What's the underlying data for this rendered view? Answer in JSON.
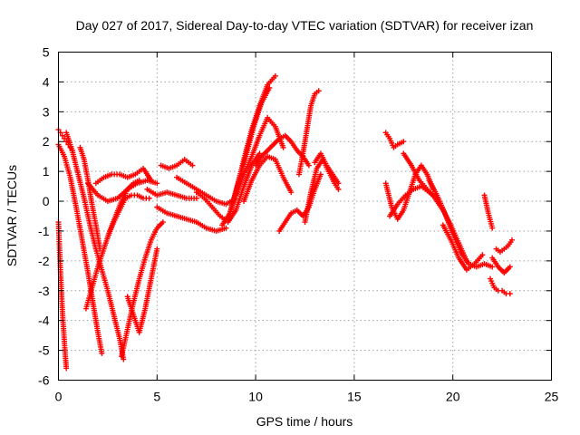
{
  "chart_data": {
    "type": "scatter",
    "title": "Day 027 of 2017, Sidereal Day-to-day VTEC variation (SDTVAR) for receiver izan",
    "xlabel": "GPS time / hours",
    "ylabel": "SDTVAR / TECUs",
    "xlim": [
      0,
      25
    ],
    "ylim": [
      -6,
      5
    ],
    "x_ticks": [
      "0",
      "5",
      "10",
      "15",
      "20",
      "25"
    ],
    "y_ticks": [
      "-6",
      "-5",
      "-4",
      "-3",
      "-2",
      "-1",
      "0",
      "1",
      "2",
      "3",
      "4",
      "5"
    ],
    "grid": true,
    "legend": "none",
    "marker": "plus",
    "color": "#ff0000",
    "series": [
      {
        "x": [
          0.0,
          0.05,
          0.1,
          0.15,
          0.2,
          0.25,
          0.3,
          0.35,
          0.4
        ],
        "y": [
          -0.7,
          -1.5,
          -2.3,
          -3.0,
          -3.7,
          -4.2,
          -4.7,
          -5.2,
          -5.6
        ]
      },
      {
        "x": [
          0.0,
          0.1,
          0.2,
          0.3,
          0.4,
          0.5,
          0.6,
          0.7
        ],
        "y": [
          2.4,
          2.3,
          2.2,
          2.1,
          2.0,
          1.9,
          1.8,
          1.7
        ]
      },
      {
        "x": [
          0.0,
          0.3,
          0.6,
          0.9,
          1.2,
          1.5,
          1.8,
          2.0,
          2.2
        ],
        "y": [
          1.9,
          1.5,
          0.8,
          -0.2,
          -1.3,
          -2.4,
          -3.6,
          -4.4,
          -5.1
        ]
      },
      {
        "x": [
          0.4,
          0.7,
          1.0,
          1.3,
          1.6,
          1.9,
          2.2,
          2.5,
          2.8,
          3.1,
          3.3
        ],
        "y": [
          2.3,
          1.7,
          0.9,
          0.1,
          -0.8,
          -1.6,
          -2.3,
          -3.0,
          -3.8,
          -4.6,
          -5.3
        ]
      },
      {
        "x": [
          1.1,
          1.3,
          1.5,
          1.7,
          1.9,
          2.1
        ],
        "y": [
          1.8,
          1.4,
          0.7,
          -0.1,
          -0.8,
          -1.6
        ]
      },
      {
        "x": [
          1.4,
          1.7,
          2.0,
          2.3,
          2.6,
          2.9,
          3.2,
          3.5,
          3.8,
          4.1
        ],
        "y": [
          -3.6,
          -2.9,
          -2.2,
          -1.6,
          -1.0,
          -0.5,
          0.0,
          0.4,
          0.6,
          0.7
        ]
      },
      {
        "x": [
          1.5,
          2.0,
          2.5,
          3.0,
          3.5,
          4.0,
          4.5,
          5.0
        ],
        "y": [
          0.6,
          0.2,
          0.0,
          0.1,
          0.4,
          0.6,
          0.7,
          0.6
        ]
      },
      {
        "x": [
          1.9,
          2.3,
          2.7,
          3.1,
          3.5,
          3.9,
          4.3,
          4.7
        ],
        "y": [
          0.6,
          0.8,
          0.9,
          0.9,
          0.8,
          0.9,
          1.1,
          0.7
        ]
      },
      {
        "x": [
          2.5,
          2.8,
          3.1,
          3.4,
          3.7,
          4.0,
          4.3,
          4.6
        ],
        "y": [
          -1.2,
          -0.7,
          -0.3,
          0.1,
          0.2,
          0.2,
          0.1,
          0.1
        ]
      },
      {
        "x": [
          3.2,
          3.5,
          3.8,
          4.1,
          4.4,
          4.7,
          5.0,
          5.3
        ],
        "y": [
          -5.2,
          -4.3,
          -3.4,
          -2.6,
          -1.9,
          -1.3,
          -0.9,
          -0.7
        ]
      },
      {
        "x": [
          3.5,
          3.8,
          4.1,
          4.4,
          4.7,
          5.0
        ],
        "y": [
          -3.2,
          -3.8,
          -4.4,
          -3.6,
          -2.6,
          -1.6
        ]
      },
      {
        "x": [
          4.5,
          5.0,
          5.5,
          6.0,
          6.5,
          7.0
        ],
        "y": [
          0.4,
          0.2,
          0.3,
          0.2,
          0.1,
          0.1
        ]
      },
      {
        "x": [
          5.0,
          5.5,
          6.0,
          6.5,
          7.0,
          7.5,
          8.0,
          8.5
        ],
        "y": [
          -0.2,
          -0.4,
          -0.5,
          -0.6,
          -0.7,
          -0.9,
          -1.0,
          -0.9
        ]
      },
      {
        "x": [
          5.2,
          5.6,
          6.0,
          6.4,
          6.8
        ],
        "y": [
          1.2,
          1.1,
          1.2,
          1.4,
          1.2
        ]
      },
      {
        "x": [
          6.0,
          6.5,
          7.0,
          7.5,
          8.0,
          8.5,
          9.0
        ],
        "y": [
          0.8,
          0.6,
          0.4,
          0.2,
          0.0,
          -0.1,
          0.1
        ]
      },
      {
        "x": [
          7.0,
          7.4,
          7.8,
          8.2,
          8.6,
          9.0,
          9.4,
          9.8,
          10.2
        ],
        "y": [
          0.3,
          0.1,
          -0.2,
          -0.5,
          -0.7,
          -0.3,
          0.5,
          1.2,
          1.6
        ]
      },
      {
        "x": [
          8.3,
          8.7,
          9.1,
          9.5,
          9.9,
          10.3,
          10.7
        ],
        "y": [
          -0.8,
          -0.4,
          0.6,
          1.5,
          2.5,
          3.3,
          3.8
        ]
      },
      {
        "x": [
          8.6,
          9.0,
          9.4,
          9.8,
          10.2,
          10.6,
          11.0
        ],
        "y": [
          -0.6,
          0.3,
          1.4,
          2.4,
          3.2,
          3.9,
          4.2
        ]
      },
      {
        "x": [
          9.0,
          9.4,
          9.8,
          10.2,
          10.6,
          11.0,
          11.4
        ],
        "y": [
          0.2,
          0.9,
          1.5,
          2.2,
          2.8,
          2.5,
          1.8
        ]
      },
      {
        "x": [
          9.4,
          9.8,
          10.2,
          10.6,
          11.0,
          11.4,
          11.8
        ],
        "y": [
          0.0,
          0.7,
          1.2,
          1.5,
          1.4,
          0.8,
          0.3
        ]
      },
      {
        "x": [
          10.0,
          10.3,
          10.6,
          10.9,
          11.2,
          11.5,
          11.8,
          12.1,
          12.4,
          12.7
        ],
        "y": [
          1.2,
          1.5,
          1.7,
          1.9,
          2.1,
          2.2,
          2.0,
          1.7,
          1.5,
          1.2
        ]
      },
      {
        "x": [
          11.2,
          11.5,
          11.8,
          12.1,
          12.4,
          12.7,
          13.0,
          13.3
        ],
        "y": [
          -1.0,
          -0.7,
          -0.4,
          -0.3,
          -0.5,
          -0.2,
          0.4,
          0.9
        ]
      },
      {
        "x": [
          12.2,
          12.4,
          12.6,
          12.8,
          13.0,
          13.2
        ],
        "y": [
          0.9,
          1.6,
          2.4,
          3.2,
          3.6,
          3.7
        ]
      },
      {
        "x": [
          12.5,
          12.8,
          13.1,
          13.4,
          13.7,
          14.0,
          14.2
        ],
        "y": [
          -0.7,
          0.3,
          1.1,
          1.4,
          1.0,
          0.6,
          0.4
        ]
      },
      {
        "x": [
          13.0,
          13.3,
          13.6,
          13.9,
          14.2
        ],
        "y": [
          1.3,
          1.6,
          1.2,
          0.9,
          0.6
        ]
      },
      {
        "x": [
          16.6,
          16.8,
          17.0,
          17.2,
          17.5
        ],
        "y": [
          2.3,
          2.1,
          1.8,
          1.9,
          2.0
        ]
      },
      {
        "x": [
          16.6,
          16.9,
          17.2,
          17.5,
          17.8,
          18.1,
          18.4,
          18.7,
          19.0
        ],
        "y": [
          0.6,
          -0.2,
          -0.6,
          -0.3,
          0.3,
          0.9,
          1.2,
          0.9,
          0.4
        ]
      },
      {
        "x": [
          16.8,
          17.2,
          17.6,
          18.0,
          18.4,
          18.8,
          19.2
        ],
        "y": [
          -0.5,
          -0.1,
          0.2,
          0.4,
          0.5,
          0.3,
          0.1
        ]
      },
      {
        "x": [
          17.5,
          17.9,
          18.3,
          18.7,
          19.1,
          19.5,
          19.9,
          20.3,
          20.7
        ],
        "y": [
          1.6,
          1.2,
          0.7,
          0.4,
          0.1,
          -0.3,
          -0.8,
          -1.4,
          -2.0
        ]
      },
      {
        "x": [
          18.8,
          19.2,
          19.6,
          20.0,
          20.4,
          20.8,
          21.2,
          21.6,
          22.0
        ],
        "y": [
          0.7,
          0.2,
          -0.4,
          -1.1,
          -1.7,
          -2.1,
          -2.2,
          -2.1,
          -2.2
        ]
      },
      {
        "x": [
          19.5,
          19.9,
          20.3,
          20.7,
          21.1,
          21.5
        ],
        "y": [
          -0.8,
          -1.3,
          -1.9,
          -2.3,
          -2.1,
          -1.8
        ]
      },
      {
        "x": [
          21.6,
          21.8,
          22.0
        ],
        "y": [
          0.2,
          -0.4,
          -0.9
        ]
      },
      {
        "x": [
          21.9,
          22.1,
          22.3,
          22.5,
          22.7,
          22.9
        ],
        "y": [
          -2.6,
          -2.9,
          -3.0,
          -3.0,
          -3.1,
          -3.1
        ]
      },
      {
        "x": [
          22.2,
          22.4,
          22.6,
          22.8,
          23.0
        ],
        "y": [
          -1.6,
          -1.7,
          -1.6,
          -1.5,
          -1.3
        ]
      },
      {
        "x": [
          22.0,
          22.3,
          22.6,
          22.9
        ],
        "y": [
          -1.9,
          -2.2,
          -2.4,
          -2.2
        ]
      }
    ]
  }
}
